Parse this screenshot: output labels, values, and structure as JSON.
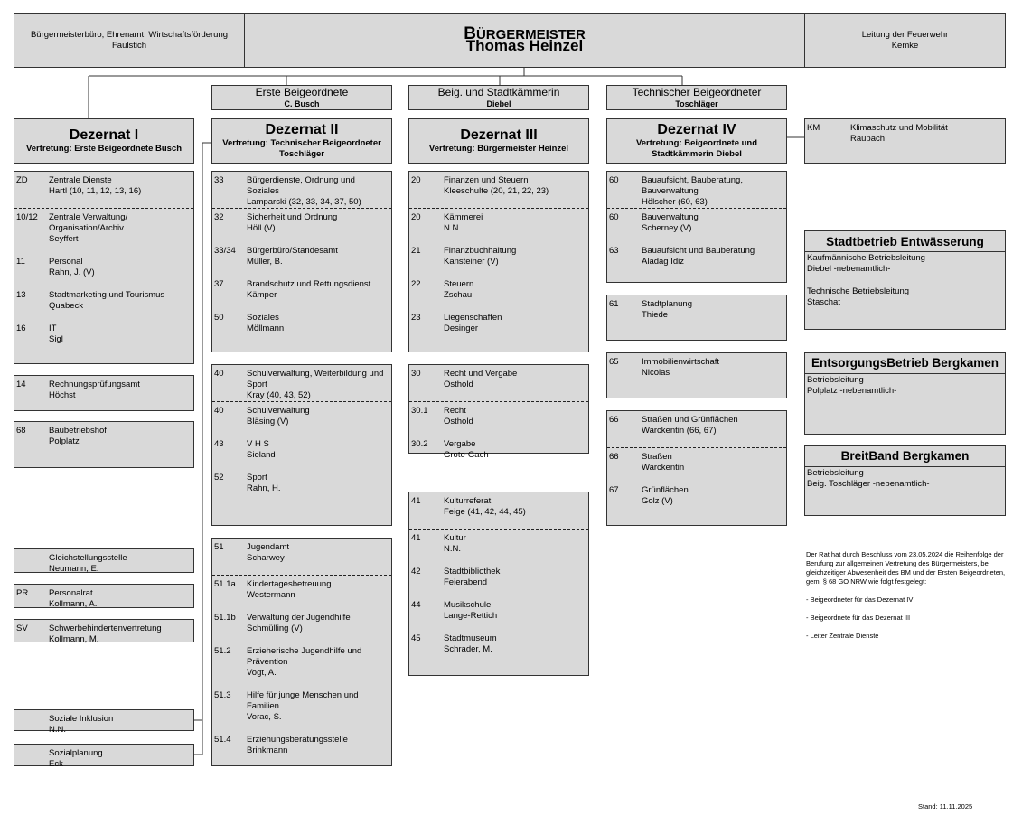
{
  "header": {
    "left": {
      "line1": "Bürgermeisterbüro, Ehrenamt, Wirtschaftsförderung",
      "line2": "Faulstich"
    },
    "center": {
      "title": "BÜRGERMEISTER",
      "name": "Thomas Heinzel"
    },
    "right": {
      "line1": "Leitung der Feuerwehr",
      "line2": "Kemke"
    }
  },
  "columns": [
    {
      "department": {
        "title": "Dezernat I",
        "subtitle": "Vertretung: Erste Beigeordnete Busch"
      },
      "boxes": [
        {
          "sections": [
            [
              {
                "code": "ZD",
                "name": "Zentrale Dienste",
                "person": "Hartl (10, 11, 12, 13, 16)"
              }
            ],
            [
              {
                "code": "10/12",
                "name": "Zentrale Verwaltung/ Organisation/Archiv",
                "person": "Seyffert"
              },
              {
                "code": "11",
                "name": "Personal",
                "person": "Rahn, J. (V)"
              },
              {
                "code": "13",
                "name": "Stadtmarketing und Tourismus",
                "person": "Quabeck"
              },
              {
                "code": "16",
                "name": "IT",
                "person": "Sigl"
              }
            ]
          ]
        },
        {
          "sections": [
            [
              {
                "code": "14",
                "name": "Rechnungsprüfungsamt",
                "person": "Höchst"
              }
            ]
          ]
        },
        {
          "sections": [
            [
              {
                "code": "68",
                "name": "Baubetriebshof",
                "person": "Polplatz"
              }
            ]
          ]
        },
        {
          "sections": [
            [
              {
                "name": "Gleichstellungsstelle",
                "person": "Neumann, E."
              }
            ]
          ]
        },
        {
          "sections": [
            [
              {
                "code": "PR",
                "name": "Personalrat",
                "person": "Kollmann, A."
              }
            ]
          ]
        },
        {
          "sections": [
            [
              {
                "code": "SV",
                "name": "Schwerbehindertenvertretung",
                "person": "Kollmann, M."
              }
            ]
          ]
        },
        {
          "sections": [
            [
              {
                "name": "Soziale Inklusion",
                "person": "N.N."
              }
            ]
          ]
        },
        {
          "sections": [
            [
              {
                "name": "Sozialplanung",
                "person": "Eck"
              }
            ]
          ]
        }
      ]
    },
    {
      "deputy": {
        "title": "Erste Beigeordnete",
        "name": "C. Busch"
      },
      "department": {
        "title": "Dezernat II",
        "subtitle": "Vertretung: Technischer Beigeordneter Toschläger"
      },
      "boxes": [
        {
          "sections": [
            [
              {
                "code": "33",
                "name": "Bürgerdienste, Ordnung und Soziales",
                "person": "Lamparski (32, 33, 34, 37, 50)"
              }
            ],
            [
              {
                "code": "32",
                "name": "Sicherheit und Ordnung",
                "person": "Höll (V)"
              },
              {
                "code": "33/34",
                "name": "Bürgerbüro/Standesamt",
                "person": "Müller, B."
              },
              {
                "code": "37",
                "name": "Brandschutz und Rettungsdienst",
                "person": "Kämper"
              },
              {
                "code": "50",
                "name": "Soziales",
                "person": "Möllmann"
              }
            ]
          ]
        },
        {
          "sections": [
            [
              {
                "code": "40",
                "name": "Schulverwaltung, Weiterbildung und Sport",
                "person": "Kray (40, 43, 52)"
              }
            ],
            [
              {
                "code": "40",
                "name": "Schulverwaltung",
                "person": "Bläsing (V)"
              },
              {
                "code": "43",
                "name": "V H S",
                "person": "Sieland"
              },
              {
                "code": "52",
                "name": "Sport",
                "person": "Rahn, H."
              }
            ]
          ]
        },
        {
          "sections": [
            [
              {
                "code": "51",
                "name": "Jugendamt",
                "person": "Scharwey"
              }
            ],
            [
              {
                "code": "51.1a",
                "name": "Kindertagesbetreuung",
                "person": "Westermann"
              },
              {
                "code": "51.1b",
                "name": "Verwaltung der Jugendhilfe",
                "person": "Schmülling (V)"
              },
              {
                "code": "51.2",
                "name": "Erzieherische Jugendhilfe und Prävention",
                "person": "Vogt, A."
              },
              {
                "code": "51.3",
                "name": "Hilfe für junge Menschen und Familien",
                "person": "Vorac, S."
              },
              {
                "code": "51.4",
                "name": "Erziehungsberatungsstelle",
                "person": "Brinkmann"
              }
            ]
          ]
        }
      ]
    },
    {
      "deputy": {
        "title": "Beig. und Stadtkämmerin",
        "name": "Diebel"
      },
      "department": {
        "title": "Dezernat III",
        "subtitle": "Vertretung: Bürgermeister Heinzel"
      },
      "boxes": [
        {
          "sections": [
            [
              {
                "code": "20",
                "name": "Finanzen und Steuern",
                "person": "Kleeschulte (20, 21, 22, 23)"
              }
            ],
            [
              {
                "code": "20",
                "name": "Kämmerei",
                "person": "N.N."
              },
              {
                "code": "21",
                "name": "Finanzbuchhaltung",
                "person": "Kansteiner (V)"
              },
              {
                "code": "22",
                "name": "Steuern",
                "person": "Zschau"
              },
              {
                "code": "23",
                "name": "Liegenschaften",
                "person": "Desinger"
              }
            ]
          ]
        },
        {
          "sections": [
            [
              {
                "code": "30",
                "name": "Recht und Vergabe",
                "person": "Osthold"
              }
            ],
            [
              {
                "code": "30.1",
                "name": "Recht",
                "person": "Osthold"
              },
              {
                "code": "30.2",
                "name": "Vergabe",
                "person": "Grote-Gach"
              }
            ]
          ]
        },
        {
          "sections": [
            [
              {
                "code": "41",
                "name": "Kulturreferat",
                "person": "Feige (41, 42, 44, 45)"
              }
            ],
            [
              {
                "code": "41",
                "name": "Kultur",
                "person": "N.N."
              },
              {
                "code": "42",
                "name": "Stadtbibliothek",
                "person": "Feierabend"
              },
              {
                "code": "44",
                "name": "Musikschule",
                "person": "Lange-Rettich"
              },
              {
                "code": "45",
                "name": "Stadtmuseum",
                "person": "Schrader, M."
              }
            ]
          ]
        }
      ]
    },
    {
      "deputy": {
        "title": "Technischer Beigeordneter",
        "name": "Toschläger"
      },
      "department": {
        "title": "Dezernat IV",
        "subtitle": "Vertretung: Beigeordnete und Stadtkämmerin Diebel"
      },
      "boxes": [
        {
          "sections": [
            [
              {
                "code": "60",
                "name": "Bauaufsicht, Bauberatung, Bauverwaltung",
                "person": "Hölscher (60, 63)"
              }
            ],
            [
              {
                "code": "60",
                "name": "Bauverwaltung",
                "person": "Scherney (V)"
              },
              {
                "code": "63",
                "name": "Bauaufsicht und Bauberatung",
                "person": "Aladag Idiz"
              }
            ]
          ]
        },
        {
          "sections": [
            [
              {
                "code": "61",
                "name": "Stadtplanung",
                "person": "Thiede"
              }
            ]
          ]
        },
        {
          "sections": [
            [
              {
                "code": "65",
                "name": "Immobilienwirtschaft",
                "person": "Nicolas"
              }
            ]
          ]
        },
        {
          "sections": [
            [
              {
                "code": "66",
                "name": "Straßen und Grünflächen",
                "person": "Warckentin (66, 67)"
              }
            ],
            [
              {
                "code": "66",
                "name": "Straßen",
                "person": "Warckentin"
              },
              {
                "code": "67",
                "name": "Grünflächen",
                "person": "Golz (V)"
              }
            ]
          ]
        }
      ]
    }
  ],
  "side_unit": {
    "code": "KM",
    "name": "Klimaschutz und Mobilität",
    "person": "Raupach"
  },
  "companies": [
    {
      "title": "Stadtbetrieb Entwässerung",
      "groups": [
        [
          "Kaufmännische Betriebsleitung",
          "Diebel -nebenamtlich-"
        ],
        [
          "Technische Betriebsleitung",
          "Staschat"
        ]
      ]
    },
    {
      "title": "EntsorgungsBetrieb Bergkamen",
      "groups": [
        [
          "Betriebsleitung",
          "Polplatz -nebenamtlich-"
        ]
      ]
    },
    {
      "title": "BreitBand Bergkamen",
      "groups": [
        [
          "Betriebsleitung",
          "Beig. Toschläger -nebenamtlich-"
        ]
      ]
    }
  ],
  "note": [
    "Der Rat hat durch Beschluss vom 23.05.2024 die Reihenfolge der Berufung zur allgemeinen Vertretung des Bürgermeisters, bei gleichzeitiger Abwesenheit des BM und der Ersten Beigeordneten, gem. § 68 GO NRW wie folgt festgelegt:",
    "- Beigeordneter für das Dezernat IV",
    "- Beigeordnete für das Dezernat III",
    "- Leiter Zentrale Dienste"
  ],
  "stand": "Stand: 11.11.2025"
}
